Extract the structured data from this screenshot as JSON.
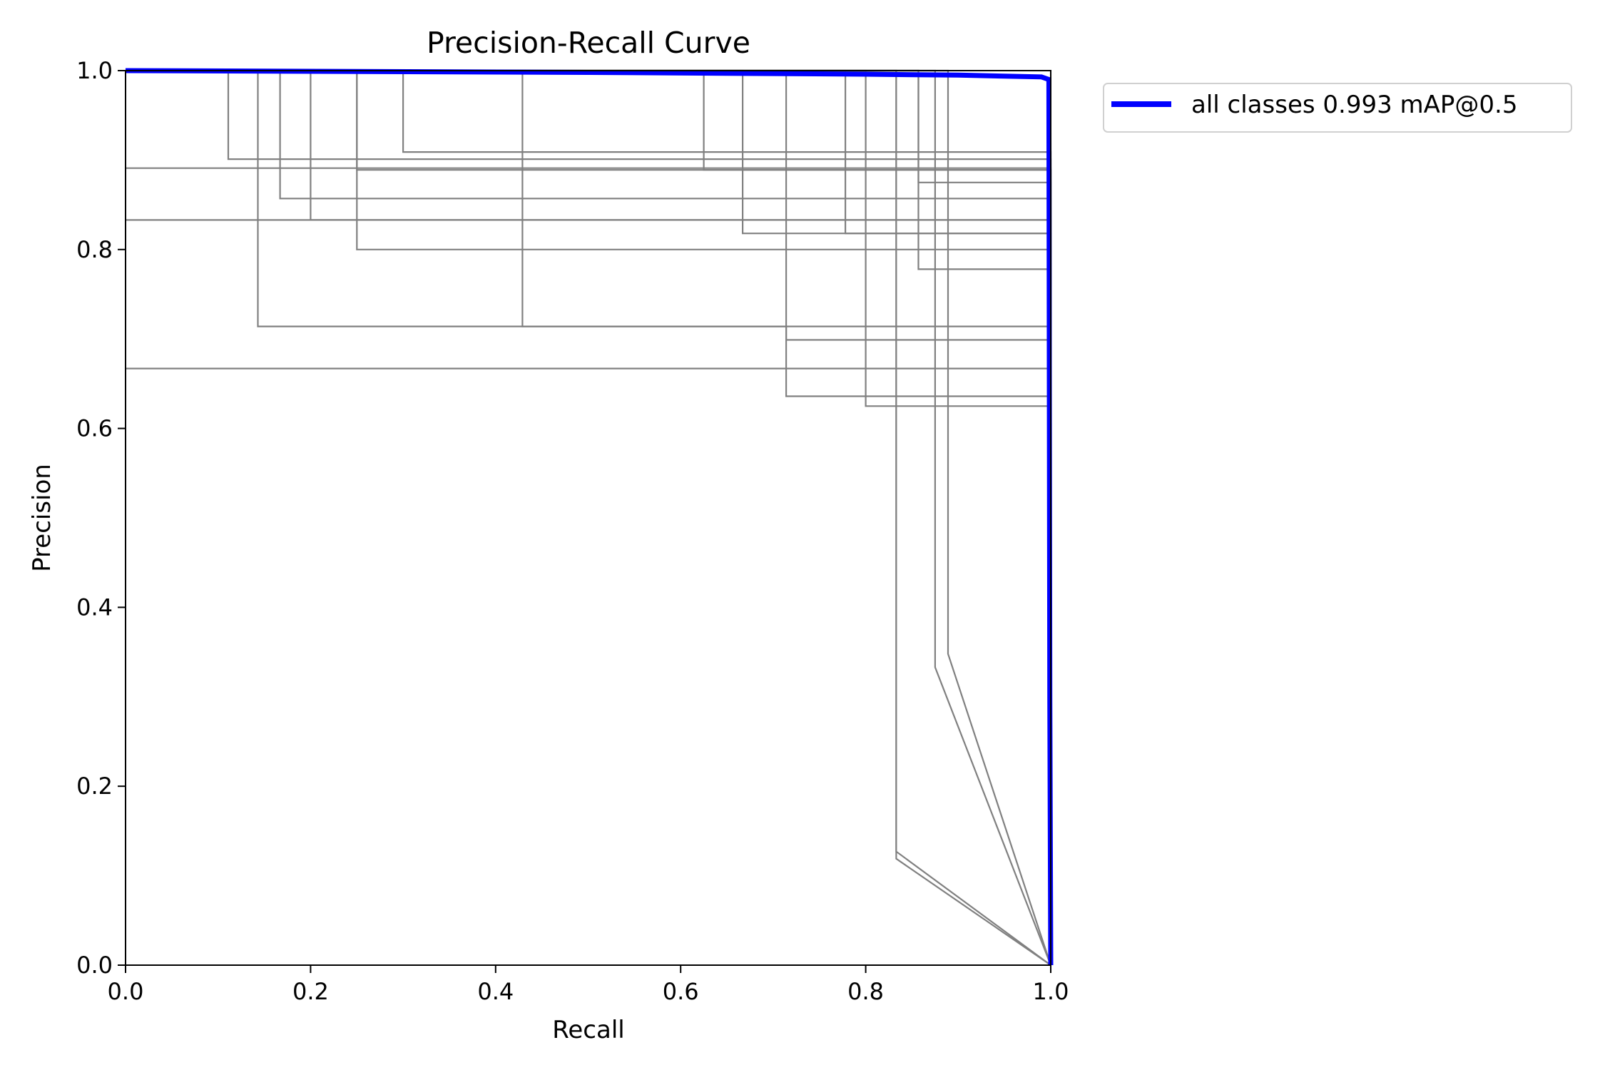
{
  "chart_data": {
    "type": "line",
    "title": "Precision-Recall Curve",
    "xlabel": "Recall",
    "ylabel": "Precision",
    "xlim": [
      0,
      1
    ],
    "ylim": [
      0,
      1
    ],
    "xticks": [
      "0.0",
      "0.2",
      "0.4",
      "0.6",
      "0.8",
      "1.0"
    ],
    "yticks": [
      "0.0",
      "0.2",
      "0.4",
      "0.6",
      "0.8",
      "1.0"
    ],
    "grid": false,
    "legend": {
      "placement": "outside-top-right"
    },
    "colors": {
      "per_class": "#808080",
      "all_classes": "#0000ff"
    },
    "class_series": [
      {
        "x": [
          0,
          0.111,
          0.111,
          1.0,
          1.0
        ],
        "y": [
          1,
          1,
          0.901,
          0.901,
          0
        ]
      },
      {
        "x": [
          0,
          0.143,
          0.143,
          0.714,
          0.714,
          1.0,
          1.0
        ],
        "y": [
          1,
          1,
          0.714,
          0.714,
          0.699,
          0.699,
          0
        ]
      },
      {
        "x": [
          0,
          0.167,
          0.167,
          1.0,
          1.0
        ],
        "y": [
          1,
          1,
          0.857,
          0.857,
          0
        ]
      },
      {
        "x": [
          0,
          0.2,
          0.2,
          1.0,
          1.0
        ],
        "y": [
          1,
          1,
          0.833,
          0.833,
          0
        ]
      },
      {
        "x": [
          0,
          0.25,
          0.25,
          1.0,
          1.0
        ],
        "y": [
          1,
          1,
          0.889,
          0.889,
          0
        ]
      },
      {
        "x": [
          0,
          0.25,
          0.25,
          1.0,
          1.0
        ],
        "y": [
          1,
          1,
          0.8,
          0.8,
          0
        ]
      },
      {
        "x": [
          0,
          0.3,
          0.3,
          1.0,
          1.0
        ],
        "y": [
          1,
          1,
          0.909,
          0.909,
          0
        ]
      },
      {
        "x": [
          0,
          0.429,
          0.429,
          1.0,
          1.0
        ],
        "y": [
          1,
          1,
          0.714,
          0.714,
          0
        ]
      },
      {
        "x": [
          0,
          0.625,
          0.625,
          1.0,
          1.0
        ],
        "y": [
          1,
          1,
          0.889,
          0.889,
          0
        ]
      },
      {
        "x": [
          0,
          0.667,
          0.667,
          1.0,
          1.0
        ],
        "y": [
          1,
          1,
          0.818,
          0.818,
          0
        ]
      },
      {
        "x": [
          0,
          0.778,
          0.778,
          1.0,
          1.0
        ],
        "y": [
          1,
          1,
          0.818,
          0.818,
          0
        ]
      },
      {
        "x": [
          0,
          0.8,
          0.8,
          1.0,
          1.0
        ],
        "y": [
          1,
          1,
          0.625,
          0.625,
          0
        ]
      },
      {
        "x": [
          0,
          0.833,
          0.833,
          1.0
        ],
        "y": [
          1,
          1,
          0.127,
          0
        ]
      },
      {
        "x": [
          0,
          0.833,
          0.833,
          1.0
        ],
        "y": [
          1,
          1,
          0.119,
          0
        ]
      },
      {
        "x": [
          0,
          0.857,
          0.857,
          1.0,
          1.0
        ],
        "y": [
          1,
          1,
          0.875,
          0.875,
          0
        ]
      },
      {
        "x": [
          0,
          0.857,
          0.857,
          1.0,
          1.0
        ],
        "y": [
          1,
          1,
          0.778,
          0.778,
          0
        ]
      },
      {
        "x": [
          0,
          0.875,
          0.875,
          1.0
        ],
        "y": [
          1,
          1,
          0.333,
          0
        ]
      },
      {
        "x": [
          0,
          0.889,
          0.889,
          1.0
        ],
        "y": [
          1,
          1,
          0.348,
          0
        ]
      },
      {
        "x": [
          0,
          1.0,
          1.0
        ],
        "y": [
          0.833,
          0.833,
          0
        ]
      },
      {
        "x": [
          0,
          1.0,
          1.0
        ],
        "y": [
          0.667,
          0.667,
          0
        ]
      },
      {
        "x": [
          0,
          0.714,
          0.714,
          1.0,
          1.0
        ],
        "y": [
          1,
          1,
          0.636,
          0.636,
          0
        ]
      },
      {
        "x": [
          0,
          1.0,
          1.0
        ],
        "y": [
          0.891,
          0.891,
          0
        ]
      }
    ],
    "series": [
      {
        "name": "all classes 0.993 mAP@0.5",
        "x": [
          0,
          0.5,
          0.8,
          0.9,
          0.99,
          0.998,
          0.999,
          1.0
        ],
        "y": [
          1.0,
          0.998,
          0.996,
          0.995,
          0.993,
          0.99,
          0.3,
          0.0
        ]
      }
    ]
  }
}
